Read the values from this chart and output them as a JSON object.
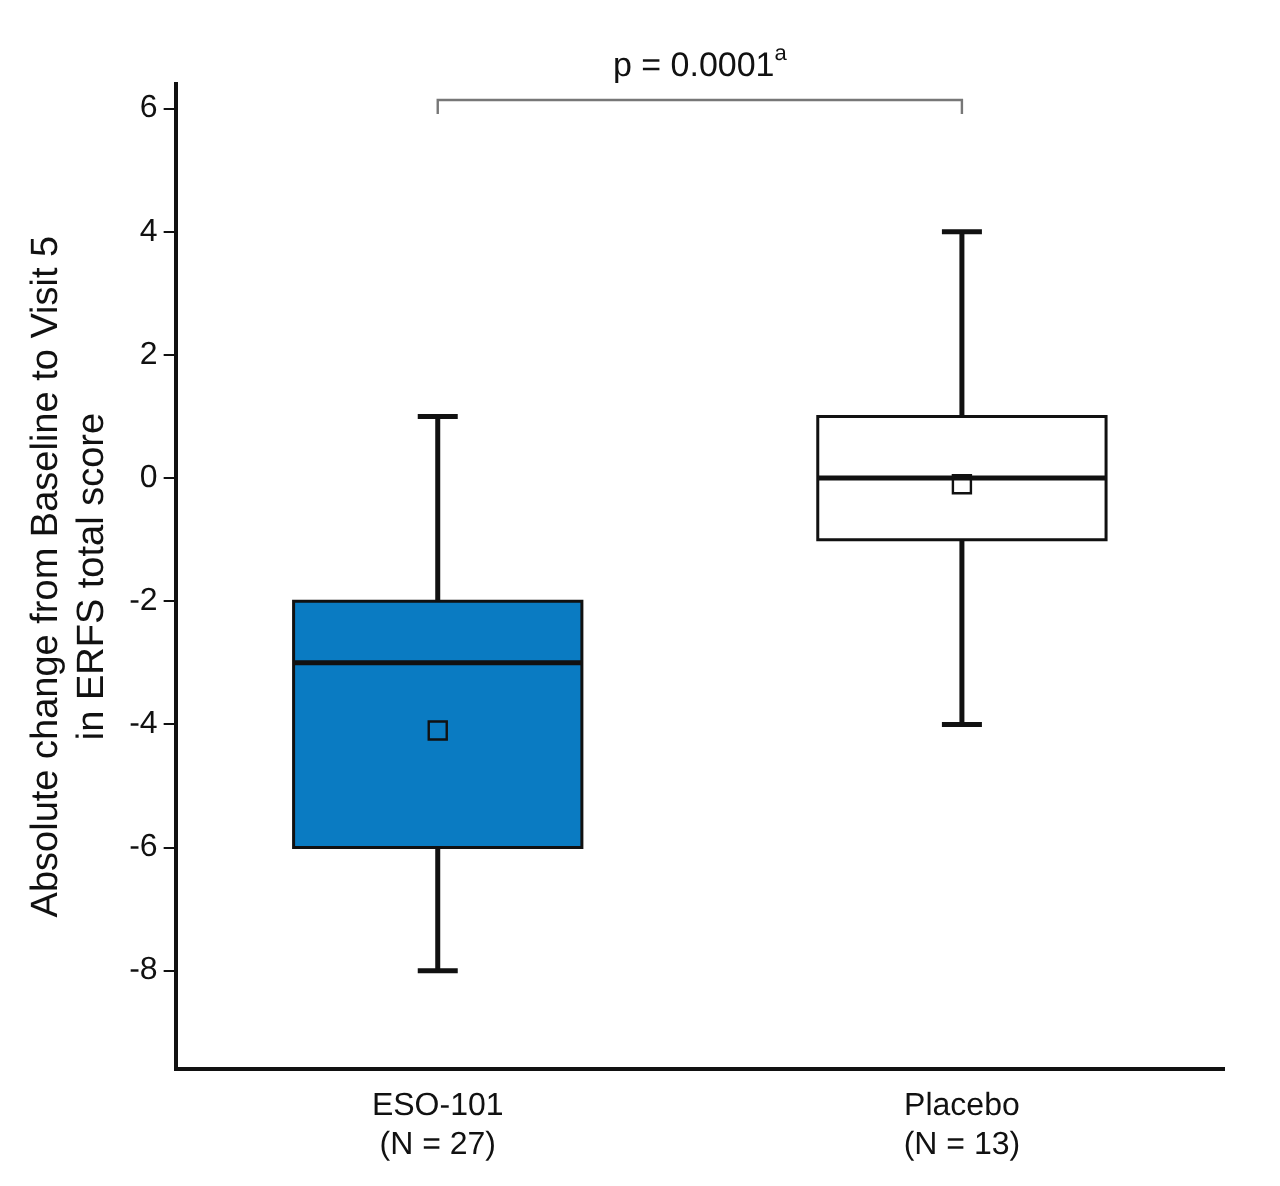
{
  "chart_data": {
    "type": "box",
    "ylabel": "Absolute change from Baseline to Visit 5\nin ERFS total score",
    "categories": [
      "ESO-101\n(N = 27)",
      "Placebo\n(N = 13)"
    ],
    "colors": [
      "#0a7bc2",
      "#ffffff"
    ],
    "boxes": [
      {
        "low": -8,
        "q1": -6,
        "median": -3,
        "q3": -2,
        "high": 1,
        "mean": -4.1
      },
      {
        "low": -4,
        "q1": -1,
        "median": 0,
        "q3": 1,
        "high": 4,
        "mean": -0.1
      }
    ],
    "ylim": [
      -9.6,
      6.4
    ],
    "yticks": [
      -8,
      -6,
      -4,
      -2,
      0,
      2,
      4,
      6
    ],
    "grid": false,
    "legend": false,
    "annotations": [
      "p = 0.0001$^{a}$"
    ]
  }
}
